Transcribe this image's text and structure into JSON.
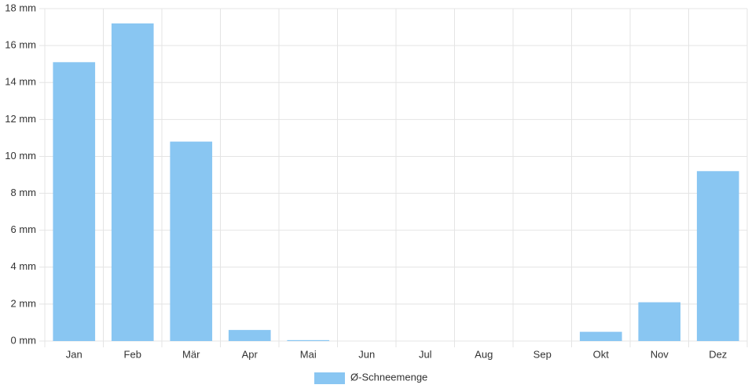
{
  "chart_data": {
    "type": "bar",
    "categories": [
      "Jan",
      "Feb",
      "Mär",
      "Apr",
      "Mai",
      "Jun",
      "Jul",
      "Aug",
      "Sep",
      "Okt",
      "Nov",
      "Dez"
    ],
    "series": [
      {
        "name": "Ø-Schneemenge",
        "color": "#89c6f2",
        "values": [
          15.1,
          17.2,
          10.8,
          0.6,
          0.05,
          0,
          0,
          0,
          0,
          0.5,
          2.1,
          9.2
        ]
      }
    ],
    "ylim": [
      0,
      18
    ],
    "yticks": [
      {
        "value": 0,
        "label": "0 mm"
      },
      {
        "value": 2,
        "label": "2 mm"
      },
      {
        "value": 4,
        "label": "4 mm"
      },
      {
        "value": 6,
        "label": "6 mm"
      },
      {
        "value": 8,
        "label": "8 mm"
      },
      {
        "value": 10,
        "label": "10 mm"
      },
      {
        "value": 12,
        "label": "12 mm"
      },
      {
        "value": 14,
        "label": "14 mm"
      },
      {
        "value": 16,
        "label": "16 mm"
      },
      {
        "value": 18,
        "label": "18 mm"
      }
    ],
    "grid": true,
    "legend": "bottom"
  }
}
